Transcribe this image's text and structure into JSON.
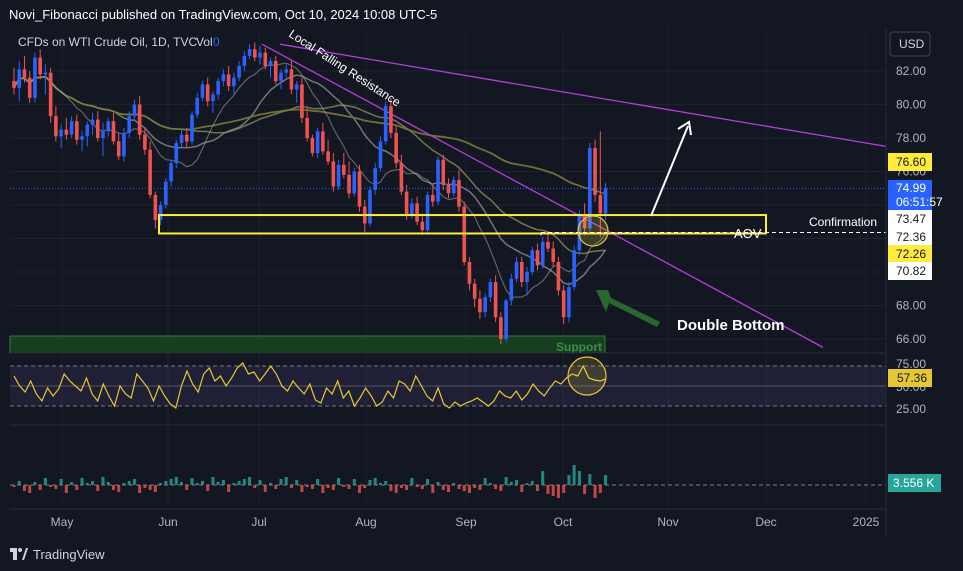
{
  "header": {
    "title": "Novi_Fibonacci published on TradingView.com, Oct 10, 2024 10:08 UTC-5"
  },
  "legend": {
    "symbol": "CFDs on WTI Crude Oil, 1D, TVC",
    "vol_label": "Vol",
    "vol_value": "0"
  },
  "currency": "USD",
  "footer": {
    "brand": "TradingView"
  },
  "colors": {
    "background": "#131722",
    "bull": "#2962ff",
    "bear": "#ef5350",
    "zone": "#ffeb3b",
    "trendline": "#b53fd8",
    "rsi": "#e6c733",
    "support": "#1b5e20",
    "arrow_white": "#ffffff",
    "arrow_green": "#2e7d32"
  },
  "chart_data": {
    "type": "candlestick",
    "price_axis": {
      "ticks": [
        "82.00",
        "80.00",
        "78.00",
        "76.00",
        "74.00",
        "72.00",
        "70.00",
        "68.00",
        "66.00"
      ],
      "range": [
        65.3,
        83.8
      ]
    },
    "time_axis": {
      "labels": [
        "May",
        "Jun",
        "Jul",
        "Aug",
        "Sep",
        "Oct",
        "Nov",
        "Dec",
        "2025"
      ]
    },
    "price_labels": [
      {
        "value": "76.60",
        "style": "yellow"
      },
      {
        "value": "74.99",
        "sub": "06:51:57",
        "style": "blue"
      },
      {
        "value": "73.47",
        "style": "white"
      },
      {
        "value": "72.36",
        "style": "white"
      },
      {
        "value": "72.26",
        "style": "yellow"
      },
      {
        "value": "70.82",
        "style": "white"
      }
    ],
    "annotations": {
      "falling_resistance": "Local Falling Resistance",
      "aov": "AOV",
      "confirmation": "Confirmation",
      "double_bottom": "Double Bottom",
      "support": "Support"
    },
    "zone": {
      "top": 73.4,
      "bottom": 72.3,
      "label": "AOV"
    },
    "confirmation_level": 72.36,
    "rsi": {
      "levels": [
        "75.00",
        "50.00",
        "25.00"
      ],
      "current": "57.36",
      "values": [
        60,
        50,
        44,
        55,
        42,
        35,
        48,
        40,
        47,
        62,
        55,
        50,
        45,
        58,
        42,
        35,
        52,
        40,
        30,
        50,
        42,
        38,
        62,
        55,
        48,
        35,
        50,
        40,
        32,
        28,
        50,
        65,
        52,
        44,
        62,
        68,
        55,
        60,
        50,
        58,
        68,
        73,
        62,
        64,
        55,
        62,
        70,
        62,
        50,
        45,
        55,
        48,
        42,
        52,
        36,
        33,
        48,
        42,
        55,
        38,
        45,
        30,
        38,
        48,
        40,
        30,
        34,
        45,
        38,
        55,
        52,
        45,
        60,
        50,
        40,
        35,
        48,
        32,
        28,
        34,
        30,
        33,
        35,
        38,
        34,
        30,
        35,
        45,
        40,
        38,
        45,
        36,
        42,
        52,
        45,
        40,
        48,
        55,
        52,
        58,
        62,
        60,
        70,
        58,
        56,
        55,
        57
      ]
    },
    "volume": {
      "current": "3.556 K"
    },
    "candles": [
      [
        81.4,
        82.2,
        80.6,
        81.0
      ],
      [
        81.0,
        82.6,
        80.2,
        82.1
      ],
      [
        82.1,
        82.9,
        81.3,
        81.6
      ],
      [
        81.6,
        82.0,
        80.1,
        80.4
      ],
      [
        80.4,
        83.1,
        80.1,
        82.8
      ],
      [
        82.8,
        83.3,
        81.5,
        81.8
      ],
      [
        81.8,
        82.4,
        80.6,
        81.9
      ],
      [
        81.9,
        82.2,
        78.9,
        79.3
      ],
      [
        79.3,
        79.9,
        77.8,
        78.1
      ],
      [
        78.1,
        78.8,
        77.4,
        78.5
      ],
      [
        78.5,
        79.2,
        77.9,
        78.2
      ],
      [
        78.2,
        79.3,
        78.0,
        79.0
      ],
      [
        79.0,
        79.4,
        77.6,
        77.9
      ],
      [
        77.9,
        78.4,
        77.2,
        78.1
      ],
      [
        78.1,
        79.0,
        77.5,
        78.8
      ],
      [
        78.8,
        79.5,
        78.2,
        79.1
      ],
      [
        79.1,
        79.6,
        77.8,
        78.0
      ],
      [
        78.0,
        78.9,
        76.9,
        78.4
      ],
      [
        78.4,
        79.2,
        78.1,
        79.0
      ],
      [
        79.0,
        79.5,
        77.6,
        77.8
      ],
      [
        77.8,
        78.3,
        76.7,
        76.9
      ],
      [
        76.9,
        78.6,
        76.6,
        78.3
      ],
      [
        78.3,
        79.6,
        78.0,
        79.3
      ],
      [
        79.3,
        80.3,
        79.0,
        80.0
      ],
      [
        80.0,
        80.5,
        77.9,
        78.2
      ],
      [
        78.2,
        78.6,
        77.0,
        77.3
      ],
      [
        77.3,
        77.8,
        74.4,
        74.6
      ],
      [
        74.6,
        74.8,
        72.6,
        73.1
      ],
      [
        73.1,
        74.2,
        72.8,
        74.0
      ],
      [
        74.0,
        75.6,
        73.8,
        75.4
      ],
      [
        75.4,
        76.7,
        75.1,
        76.5
      ],
      [
        76.5,
        77.9,
        76.2,
        77.7
      ],
      [
        77.7,
        78.5,
        77.4,
        78.2
      ],
      [
        78.2,
        78.6,
        77.4,
        77.8
      ],
      [
        77.8,
        79.6,
        77.6,
        79.4
      ],
      [
        79.4,
        80.7,
        79.2,
        80.4
      ],
      [
        80.4,
        81.4,
        80.2,
        81.2
      ],
      [
        81.2,
        81.6,
        79.9,
        80.2
      ],
      [
        80.2,
        80.8,
        79.5,
        80.6
      ],
      [
        80.6,
        81.6,
        80.3,
        81.4
      ],
      [
        81.4,
        82.1,
        81.1,
        81.8
      ],
      [
        81.8,
        82.3,
        80.8,
        81.1
      ],
      [
        81.1,
        81.9,
        80.6,
        81.6
      ],
      [
        81.6,
        82.6,
        81.4,
        82.3
      ],
      [
        82.3,
        83.2,
        82.0,
        82.9
      ],
      [
        82.9,
        83.6,
        82.7,
        83.3
      ],
      [
        83.3,
        83.7,
        82.6,
        82.8
      ],
      [
        82.8,
        83.5,
        82.4,
        83.1
      ],
      [
        83.1,
        83.4,
        82.1,
        82.3
      ],
      [
        82.3,
        82.8,
        81.6,
        82.6
      ],
      [
        82.6,
        82.9,
        81.2,
        81.4
      ],
      [
        81.4,
        82.1,
        80.9,
        81.9
      ],
      [
        81.9,
        82.4,
        81.6,
        82.1
      ],
      [
        82.1,
        82.6,
        80.6,
        80.9
      ],
      [
        80.9,
        81.4,
        80.1,
        81.2
      ],
      [
        81.2,
        81.6,
        78.9,
        79.2
      ],
      [
        79.2,
        79.8,
        77.8,
        78.0
      ],
      [
        78.0,
        78.2,
        76.9,
        77.1
      ],
      [
        77.1,
        78.6,
        76.8,
        78.4
      ],
      [
        78.4,
        78.9,
        77.0,
        77.2
      ],
      [
        77.2,
        77.9,
        76.4,
        76.6
      ],
      [
        76.6,
        77.1,
        74.8,
        75.1
      ],
      [
        75.1,
        76.7,
        74.9,
        76.4
      ],
      [
        76.4,
        77.1,
        75.6,
        75.8
      ],
      [
        75.8,
        76.6,
        74.4,
        74.7
      ],
      [
        74.7,
        76.2,
        74.5,
        76.0
      ],
      [
        76.0,
        76.4,
        73.6,
        73.9
      ],
      [
        73.9,
        74.3,
        72.4,
        72.9
      ],
      [
        72.9,
        75.1,
        72.7,
        74.9
      ],
      [
        74.9,
        76.5,
        74.6,
        76.2
      ],
      [
        76.2,
        78.1,
        76.0,
        77.8
      ],
      [
        77.8,
        80.2,
        77.6,
        79.9
      ],
      [
        79.9,
        80.4,
        78.0,
        78.3
      ],
      [
        78.3,
        78.7,
        76.2,
        76.5
      ],
      [
        76.5,
        77.0,
        74.6,
        74.8
      ],
      [
        74.8,
        75.2,
        73.1,
        73.4
      ],
      [
        73.4,
        74.4,
        73.2,
        74.1
      ],
      [
        74.1,
        74.5,
        72.8,
        73.0
      ],
      [
        73.0,
        73.5,
        72.2,
        72.5
      ],
      [
        72.5,
        74.8,
        72.3,
        74.6
      ],
      [
        74.6,
        75.2,
        73.9,
        74.2
      ],
      [
        74.2,
        76.9,
        74.0,
        76.7
      ],
      [
        76.7,
        77.0,
        74.9,
        75.2
      ],
      [
        75.2,
        75.6,
        74.4,
        74.7
      ],
      [
        74.7,
        75.7,
        74.5,
        75.5
      ],
      [
        75.5,
        76.1,
        73.6,
        73.9
      ],
      [
        73.9,
        74.2,
        70.4,
        70.6
      ],
      [
        70.6,
        70.9,
        68.9,
        69.3
      ],
      [
        69.3,
        69.6,
        67.9,
        68.4
      ],
      [
        68.4,
        68.9,
        67.2,
        67.6
      ],
      [
        67.6,
        68.7,
        67.3,
        68.5
      ],
      [
        68.5,
        69.6,
        68.2,
        69.4
      ],
      [
        69.4,
        69.8,
        67.0,
        67.3
      ],
      [
        67.3,
        67.6,
        65.7,
        66.0
      ],
      [
        66.0,
        68.4,
        65.8,
        68.3
      ],
      [
        68.3,
        69.9,
        68.0,
        69.6
      ],
      [
        69.6,
        70.9,
        69.4,
        70.6
      ],
      [
        70.6,
        70.9,
        69.1,
        69.4
      ],
      [
        69.4,
        70.3,
        68.6,
        70.0
      ],
      [
        70.0,
        71.5,
        69.8,
        71.3
      ],
      [
        71.3,
        71.7,
        70.1,
        70.4
      ],
      [
        70.4,
        72.1,
        70.2,
        71.8
      ],
      [
        71.8,
        72.4,
        71.2,
        71.4
      ],
      [
        71.4,
        71.8,
        70.3,
        70.6
      ],
      [
        70.6,
        70.9,
        68.6,
        68.9
      ],
      [
        68.9,
        69.2,
        66.9,
        67.3
      ],
      [
        67.3,
        69.4,
        67.0,
        69.1
      ],
      [
        69.1,
        71.6,
        68.9,
        71.3
      ],
      [
        71.3,
        73.7,
        71.0,
        73.4
      ],
      [
        73.4,
        74.1,
        72.2,
        72.6
      ],
      [
        72.6,
        77.7,
        72.4,
        77.4
      ],
      [
        77.4,
        77.9,
        74.2,
        74.6
      ],
      [
        74.6,
        78.4,
        72.1,
        73.5
      ],
      [
        73.5,
        75.3,
        73.1,
        74.99
      ]
    ]
  }
}
